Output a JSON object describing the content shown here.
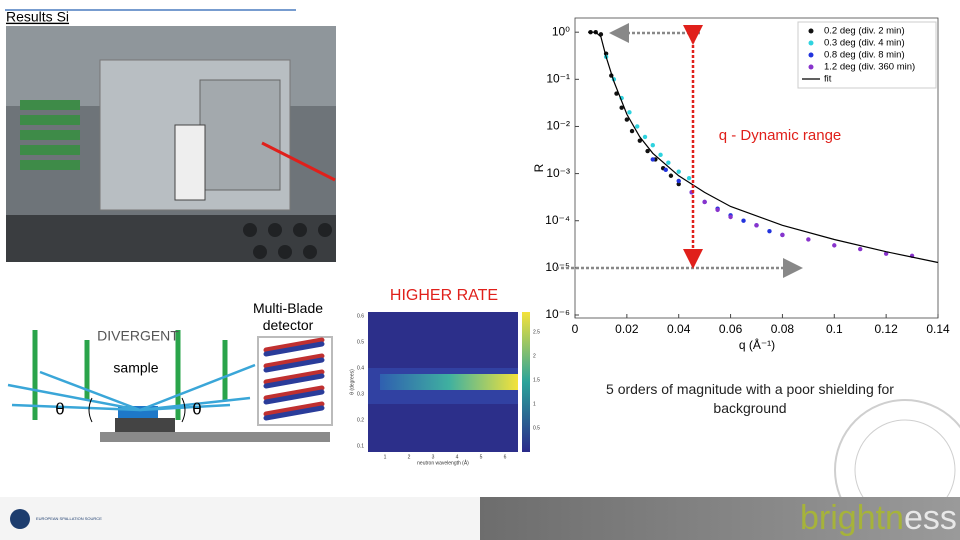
{
  "slide": {
    "title": "Results Si",
    "annotation": "q - Dynamic range",
    "rate_label": "HIGHER RATE",
    "detector_label": "Multi-Blade detector",
    "beam_label": "DIVERGENT",
    "sample_label": "sample",
    "angle_left": "θ",
    "angle_right": "θ",
    "caption": "5 orders of magnitude with a poor shielding for background",
    "ess_logo": "EUROPEAN SPALLATION SOURCE",
    "logo": [
      "brightn",
      "ess"
    ]
  },
  "heatmap": {
    "xticks": [
      "1",
      "2",
      "3",
      "4",
      "5",
      "6"
    ],
    "yticks": [
      "0.6",
      "0.5",
      "0.4",
      "0.3",
      "0.2",
      "0.1"
    ],
    "cticks": [
      "2.5",
      "2",
      "1.5",
      "1",
      "0.5"
    ],
    "xlabel": "neutron wavelength (Å)",
    "ylabel": "θ (degrees)"
  },
  "chart_data": {
    "type": "scatter",
    "xlabel": "q (Å⁻¹)",
    "ylabel": "R",
    "ylog": true,
    "legend": "upper right",
    "xlim": [
      0,
      0.14
    ],
    "ylim": [
      1e-06,
      2
    ],
    "xticks": [
      0,
      0.02,
      0.04,
      0.06,
      0.08,
      0.1,
      0.12,
      0.14
    ],
    "yticks": [
      {
        "value": 1,
        "label": "10⁰"
      },
      {
        "value": 0.1,
        "label": "10⁻¹"
      },
      {
        "value": 0.01,
        "label": "10⁻²"
      },
      {
        "value": 0.001,
        "label": "10⁻³"
      },
      {
        "value": 0.0001,
        "label": "10⁻⁴"
      },
      {
        "value": 1e-05,
        "label": "10⁻⁵"
      },
      {
        "value": 1e-06,
        "label": "10⁻⁶"
      }
    ],
    "series": [
      {
        "name": "0.2 deg (div. 2 min)",
        "color": "#111111",
        "mode": "markers",
        "x": [
          0.006,
          0.008,
          0.01,
          0.012,
          0.014,
          0.016,
          0.018,
          0.02,
          0.022,
          0.025,
          0.028,
          0.031,
          0.034,
          0.037,
          0.04
        ],
        "values": [
          1,
          1,
          0.9,
          0.35,
          0.12,
          0.05,
          0.025,
          0.014,
          0.008,
          0.005,
          0.003,
          0.002,
          0.0013,
          0.0009,
          0.0006
        ]
      },
      {
        "name": "0.3 deg (div. 4 min)",
        "color": "#2fd3df",
        "mode": "markers",
        "x": [
          0.012,
          0.015,
          0.018,
          0.021,
          0.024,
          0.027,
          0.03,
          0.033,
          0.036,
          0.04,
          0.044
        ],
        "values": [
          0.3,
          0.1,
          0.04,
          0.02,
          0.01,
          0.006,
          0.004,
          0.0025,
          0.0017,
          0.0011,
          0.0008
        ]
      },
      {
        "name": "0.8 deg (div. 8 min)",
        "color": "#2233dd",
        "mode": "markers",
        "x": [
          0.03,
          0.035,
          0.04,
          0.045,
          0.05,
          0.055,
          0.06,
          0.065,
          0.07,
          0.075,
          0.08
        ],
        "values": [
          0.002,
          0.0012,
          0.0007,
          0.0004,
          0.00025,
          0.00018,
          0.00013,
          0.0001,
          8e-05,
          6e-05,
          5e-05
        ]
      },
      {
        "name": "1.2 deg (div. 360 min)",
        "color": "#8833cc",
        "mode": "markers",
        "x": [
          0.045,
          0.05,
          0.055,
          0.06,
          0.07,
          0.08,
          0.09,
          0.1,
          0.11,
          0.12,
          0.13
        ],
        "values": [
          0.0004,
          0.00025,
          0.00017,
          0.00012,
          8e-05,
          5e-05,
          4e-05,
          3e-05,
          2.5e-05,
          2e-05,
          1.8e-05
        ]
      },
      {
        "name": "fit",
        "color": "#000000",
        "mode": "line",
        "x": [
          0.005,
          0.008,
          0.01,
          0.012,
          0.015,
          0.02,
          0.025,
          0.03,
          0.04,
          0.05,
          0.06,
          0.08,
          0.1,
          0.12,
          0.14
        ],
        "values": [
          1,
          1,
          0.8,
          0.3,
          0.09,
          0.018,
          0.006,
          0.0027,
          0.0009,
          0.0004,
          0.0002,
          8e-05,
          4e-05,
          2.2e-05,
          1.3e-05
        ]
      }
    ]
  }
}
